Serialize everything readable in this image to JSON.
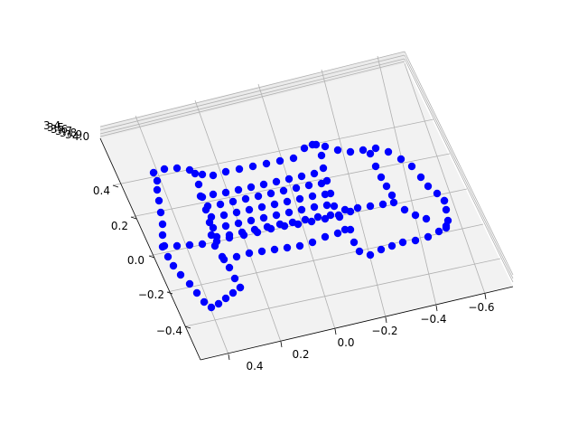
{
  "chart_data": {
    "type": "scatter",
    "projection": "3d",
    "title": "",
    "xlabel": "",
    "ylabel": "",
    "zlabel": "",
    "marker_color": "#0000ff",
    "pane_color": "#f2f2f2",
    "grid": true,
    "x_axis": {
      "ticks": [
        {
          "value": -0.6,
          "label": "−0.6"
        },
        {
          "value": -0.4,
          "label": "−0.4"
        },
        {
          "value": -0.2,
          "label": "−0.2"
        },
        {
          "value": 0.0,
          "label": "0.0"
        },
        {
          "value": 0.2,
          "label": "0.2"
        },
        {
          "value": 0.4,
          "label": "0.4"
        }
      ]
    },
    "y_axis": {
      "ticks": [
        {
          "value": 0.4,
          "label": "0.4"
        },
        {
          "value": 0.2,
          "label": "0.2"
        },
        {
          "value": 0.0,
          "label": "0.0"
        },
        {
          "value": -0.2,
          "label": "−0.2"
        },
        {
          "value": -0.4,
          "label": "−0.4"
        }
      ]
    },
    "z_axis": {
      "ticks": [
        {
          "value": 3.4,
          "label": "3.4"
        },
        {
          "value": 3.5,
          "label": "3.5"
        },
        {
          "value": 3.6,
          "label": "3.6"
        },
        {
          "value": 3.7,
          "label": "3.7"
        },
        {
          "value": 3.8,
          "label": "3.8"
        },
        {
          "value": 3.9,
          "label": "3.9"
        },
        {
          "value": 4.0,
          "label": "4.0"
        }
      ]
    },
    "polylines": [
      {
        "name": "main-long-edge-1",
        "points": [
          [
            170,
            191
          ],
          [
            182,
            187
          ],
          [
            196,
            186
          ],
          [
            210,
            188
          ],
          [
            224,
            193
          ],
          [
            236,
            194
          ],
          [
            250,
            190
          ],
          [
            265,
            187
          ],
          [
            280,
            184
          ],
          [
            295,
            181
          ],
          [
            310,
            178
          ],
          [
            325,
            175
          ],
          [
            337,
            164
          ],
          [
            350,
            160
          ]
        ]
      },
      {
        "name": "main-long-edge-2",
        "points": [
          [
            180,
            273
          ],
          [
            196,
            272
          ],
          [
            210,
            271
          ],
          [
            224,
            270
          ],
          [
            240,
            267
          ],
          [
            254,
            263
          ],
          [
            270,
            260
          ],
          [
            285,
            257
          ],
          [
            300,
            253
          ],
          [
            315,
            250
          ],
          [
            330,
            248
          ],
          [
            345,
            245
          ],
          [
            360,
            242
          ],
          [
            375,
            238
          ],
          [
            388,
            234
          ]
        ]
      },
      {
        "name": "main-rib-1",
        "points": [
          [
            222,
            217
          ],
          [
            236,
            215
          ],
          [
            250,
            213
          ],
          [
            264,
            210
          ],
          [
            278,
            207
          ],
          [
            292,
            204
          ],
          [
            306,
            201
          ],
          [
            320,
            198
          ],
          [
            334,
            195
          ],
          [
            348,
            192
          ]
        ]
      },
      {
        "name": "main-rib-2",
        "points": [
          [
            230,
            228
          ],
          [
            244,
            226
          ],
          [
            258,
            223
          ],
          [
            272,
            220
          ],
          [
            286,
            217
          ],
          [
            300,
            214
          ],
          [
            314,
            211
          ],
          [
            328,
            208
          ],
          [
            342,
            205
          ],
          [
            356,
            203
          ]
        ]
      },
      {
        "name": "main-rib-3",
        "points": [
          [
            234,
            240
          ],
          [
            248,
            238
          ],
          [
            262,
            235
          ],
          [
            276,
            232
          ],
          [
            290,
            229
          ],
          [
            304,
            226
          ],
          [
            318,
            223
          ],
          [
            332,
            220
          ],
          [
            346,
            217
          ],
          [
            360,
            215
          ]
        ]
      },
      {
        "name": "main-rib-4",
        "points": [
          [
            236,
            252
          ],
          [
            250,
            250
          ],
          [
            264,
            247
          ],
          [
            278,
            244
          ],
          [
            292,
            241
          ],
          [
            306,
            238
          ],
          [
            320,
            235
          ],
          [
            334,
            232
          ],
          [
            348,
            229
          ],
          [
            362,
            227
          ]
        ]
      },
      {
        "name": "main-rib-5",
        "points": [
          [
            240,
            262
          ],
          [
            254,
            260
          ],
          [
            268,
            257
          ],
          [
            282,
            254
          ],
          [
            296,
            251
          ],
          [
            310,
            248
          ],
          [
            324,
            246
          ],
          [
            338,
            243
          ],
          [
            352,
            240
          ],
          [
            366,
            238
          ]
        ]
      },
      {
        "name": "lower-rail",
        "points": [
          [
            248,
            287
          ],
          [
            262,
            284
          ],
          [
            276,
            280
          ],
          [
            290,
            278
          ],
          [
            304,
            276
          ],
          [
            318,
            274
          ],
          [
            332,
            272
          ],
          [
            346,
            268
          ],
          [
            360,
            262
          ],
          [
            374,
            258
          ],
          [
            388,
            254
          ]
        ]
      },
      {
        "name": "left-end-outer",
        "points": [
          [
            174,
            200
          ],
          [
            174,
            210
          ],
          [
            176,
            222
          ],
          [
            178,
            235
          ],
          [
            180,
            248
          ],
          [
            180,
            260
          ],
          [
            182,
            272
          ],
          [
            186,
            284
          ],
          [
            192,
            294
          ],
          [
            200,
            304
          ],
          [
            210,
            314
          ],
          [
            218,
            324
          ],
          [
            226,
            334
          ],
          [
            234,
            340
          ],
          [
            242,
            336
          ],
          [
            250,
            330
          ],
          [
            258,
            324
          ],
          [
            266,
            318
          ]
        ]
      },
      {
        "name": "left-end-inner",
        "points": [
          [
            216,
            192
          ],
          [
            220,
            204
          ],
          [
            224,
            218
          ],
          [
            228,
            232
          ],
          [
            232,
            246
          ],
          [
            234,
            260
          ],
          [
            238,
            272
          ],
          [
            246,
            284
          ],
          [
            254,
            296
          ],
          [
            260,
            308
          ],
          [
            266,
            318
          ]
        ]
      },
      {
        "name": "right-body-top",
        "points": [
          [
            346,
            160
          ],
          [
            360,
            162
          ],
          [
            374,
            166
          ],
          [
            388,
            168
          ],
          [
            402,
            166
          ],
          [
            416,
            164
          ],
          [
            430,
            168
          ],
          [
            444,
            176
          ],
          [
            456,
            184
          ],
          [
            466,
            196
          ],
          [
            474,
            206
          ],
          [
            484,
            214
          ],
          [
            492,
            222
          ]
        ]
      },
      {
        "name": "right-body-front",
        "points": [
          [
            356,
            172
          ],
          [
            358,
            186
          ],
          [
            362,
            200
          ],
          [
            366,
            214
          ],
          [
            370,
            228
          ],
          [
            376,
            240
          ],
          [
            382,
            254
          ],
          [
            392,
            268
          ],
          [
            398,
            278
          ],
          [
            410,
            282
          ],
          [
            422,
            276
          ],
          [
            434,
            272
          ],
          [
            446,
            268
          ],
          [
            460,
            266
          ],
          [
            474,
            262
          ],
          [
            486,
            256
          ],
          [
            494,
            250
          ]
        ]
      },
      {
        "name": "right-body-edge",
        "points": [
          [
            410,
            170
          ],
          [
            416,
            184
          ],
          [
            422,
            196
          ],
          [
            428,
            206
          ],
          [
            434,
            216
          ]
        ]
      },
      {
        "name": "right-body-inner",
        "points": [
          [
            382,
            232
          ],
          [
            396,
            230
          ],
          [
            410,
            228
          ],
          [
            424,
            226
          ],
          [
            436,
            224
          ],
          [
            448,
            232
          ],
          [
            460,
            238
          ],
          [
            472,
            242
          ]
        ]
      },
      {
        "name": "right-end-cap",
        "points": [
          [
            492,
            222
          ],
          [
            494,
            232
          ],
          [
            496,
            244
          ],
          [
            494,
            252
          ]
        ]
      }
    ]
  }
}
